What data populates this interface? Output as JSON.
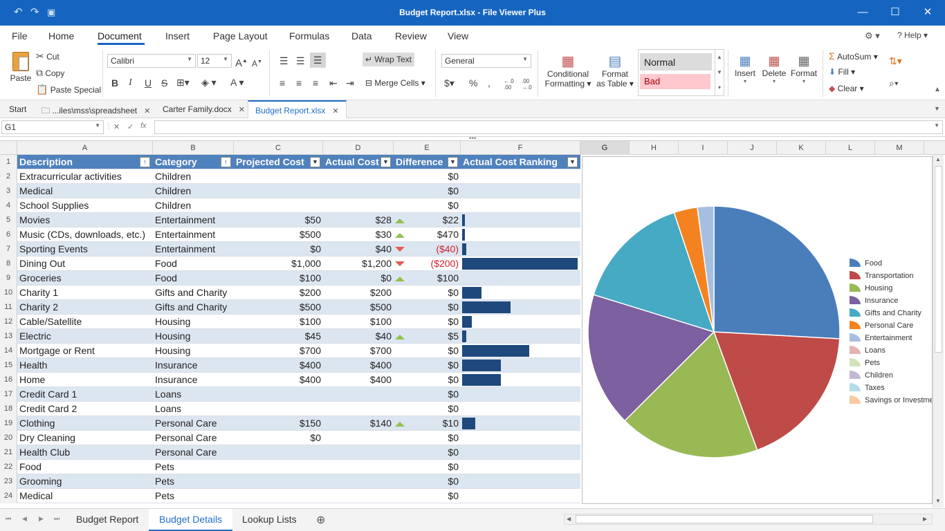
{
  "window": {
    "title": "Budget Report.xlsx - File Viewer Plus"
  },
  "menu": {
    "items": [
      "File",
      "Home",
      "Document",
      "Insert",
      "Page Layout",
      "Formulas",
      "Data",
      "Review",
      "View"
    ],
    "active": "Document",
    "help": "Help"
  },
  "ribbon": {
    "paste": "Paste",
    "cut": "Cut",
    "copy": "Copy",
    "paste_special": "Paste Special",
    "font_name": "Calibri",
    "font_size": "12",
    "wrap_text": "Wrap Text",
    "merge_cells": "Merge Cells",
    "number_format": "General",
    "conditional_formatting": [
      "Conditional",
      "Formatting"
    ],
    "format_as_table": [
      "Format",
      "as Table"
    ],
    "style_normal": "Normal",
    "style_bad": "Bad",
    "insert": "Insert",
    "delete": "Delete",
    "format": "Format",
    "autosum": "AutoSum",
    "fill": "Fill",
    "clear": "Clear"
  },
  "doc_tabs": [
    {
      "label": "Start",
      "closable": false,
      "active": false
    },
    {
      "label": "...iles\\mss\\spreadsheet",
      "closable": true,
      "active": false
    },
    {
      "label": "Carter Family.docx",
      "closable": true,
      "active": false
    },
    {
      "label": "Budget Report.xlsx",
      "closable": true,
      "active": true
    }
  ],
  "formula_bar": {
    "cell_ref": "G1",
    "formula": ""
  },
  "columns": [
    "A",
    "B",
    "C",
    "D",
    "E",
    "F",
    "G",
    "H",
    "I",
    "J",
    "K",
    "L",
    "M"
  ],
  "selected_column": "G",
  "table": {
    "headers": [
      "Description",
      "Category",
      "Projected Cost",
      "Actual Cost",
      "Difference",
      "Actual Cost Ranking"
    ],
    "rows": [
      {
        "n": "1"
      },
      {
        "n": "2",
        "desc": "Extracurricular activities",
        "cat": "Children",
        "proj": "",
        "act": "",
        "diff": "$0",
        "trend": "",
        "rank": 0
      },
      {
        "n": "3",
        "desc": "Medical",
        "cat": "Children",
        "proj": "",
        "act": "",
        "diff": "$0",
        "trend": "",
        "rank": 0
      },
      {
        "n": "4",
        "desc": "School Supplies",
        "cat": "Children",
        "proj": "",
        "act": "",
        "diff": "$0",
        "trend": "",
        "rank": 0
      },
      {
        "n": "5",
        "desc": "Movies",
        "cat": "Entertainment",
        "proj": "$50",
        "act": "$28",
        "diff": "$22",
        "trend": "up",
        "rank": 28
      },
      {
        "n": "6",
        "desc": "Music (CDs, downloads, etc.)",
        "cat": "Entertainment",
        "proj": "$500",
        "act": "$30",
        "diff": "$470",
        "trend": "up",
        "rank": 30
      },
      {
        "n": "7",
        "desc": "Sporting Events",
        "cat": "Entertainment",
        "proj": "$0",
        "act": "$40",
        "diff": "($40)",
        "trend": "down",
        "rank": 40
      },
      {
        "n": "8",
        "desc": "Dining Out",
        "cat": "Food",
        "proj": "$1,000",
        "act": "$1,200",
        "diff": "($200)",
        "trend": "down",
        "rank": 1200
      },
      {
        "n": "9",
        "desc": "Groceries",
        "cat": "Food",
        "proj": "$100",
        "act": "$0",
        "diff": "$100",
        "trend": "up",
        "rank": 0
      },
      {
        "n": "10",
        "desc": "Charity 1",
        "cat": "Gifts and Charity",
        "proj": "$200",
        "act": "$200",
        "diff": "$0",
        "trend": "",
        "rank": 200
      },
      {
        "n": "11",
        "desc": "Charity 2",
        "cat": "Gifts and Charity",
        "proj": "$500",
        "act": "$500",
        "diff": "$0",
        "trend": "",
        "rank": 500
      },
      {
        "n": "12",
        "desc": "Cable/Satellite",
        "cat": "Housing",
        "proj": "$100",
        "act": "$100",
        "diff": "$0",
        "trend": "",
        "rank": 100
      },
      {
        "n": "13",
        "desc": "Electric",
        "cat": "Housing",
        "proj": "$45",
        "act": "$40",
        "diff": "$5",
        "trend": "up",
        "rank": 40
      },
      {
        "n": "14",
        "desc": "Mortgage or Rent",
        "cat": "Housing",
        "proj": "$700",
        "act": "$700",
        "diff": "$0",
        "trend": "",
        "rank": 700
      },
      {
        "n": "15",
        "desc": "Health",
        "cat": "Insurance",
        "proj": "$400",
        "act": "$400",
        "diff": "$0",
        "trend": "",
        "rank": 400
      },
      {
        "n": "16",
        "desc": "Home",
        "cat": "Insurance",
        "proj": "$400",
        "act": "$400",
        "diff": "$0",
        "trend": "",
        "rank": 400
      },
      {
        "n": "17",
        "desc": "Credit Card 1",
        "cat": "Loans",
        "proj": "",
        "act": "",
        "diff": "$0",
        "trend": "",
        "rank": 0
      },
      {
        "n": "18",
        "desc": "Credit Card 2",
        "cat": "Loans",
        "proj": "",
        "act": "",
        "diff": "$0",
        "trend": "",
        "rank": 0
      },
      {
        "n": "19",
        "desc": "Clothing",
        "cat": "Personal Care",
        "proj": "$150",
        "act": "$140",
        "diff": "$10",
        "trend": "up",
        "rank": 140
      },
      {
        "n": "20",
        "desc": "Dry Cleaning",
        "cat": "Personal Care",
        "proj": "$0",
        "act": "",
        "diff": "$0",
        "trend": "",
        "rank": 0
      },
      {
        "n": "21",
        "desc": "Health Club",
        "cat": "Personal Care",
        "proj": "",
        "act": "",
        "diff": "$0",
        "trend": "",
        "rank": 0
      },
      {
        "n": "22",
        "desc": "Food",
        "cat": "Pets",
        "proj": "",
        "act": "",
        "diff": "$0",
        "trend": "",
        "rank": 0
      },
      {
        "n": "23",
        "desc": "Grooming",
        "cat": "Pets",
        "proj": "",
        "act": "",
        "diff": "$0",
        "trend": "",
        "rank": 0
      },
      {
        "n": "24",
        "desc": "Medical",
        "cat": "Pets",
        "proj": "",
        "act": "",
        "diff": "$0",
        "trend": "",
        "rank": 0
      }
    ]
  },
  "chart_data": {
    "type": "pie",
    "title": "",
    "categories": [
      "Food",
      "Transportation",
      "Housing",
      "Insurance",
      "Gifts and Charity",
      "Personal Care",
      "Entertainment",
      "Loans",
      "Pets",
      "Children",
      "Taxes",
      "Savings or Investments"
    ],
    "values": [
      1200,
      860,
      840,
      800,
      700,
      140,
      98,
      0,
      0,
      0,
      0,
      0
    ],
    "colors": [
      "#4a7ebb",
      "#be4b48",
      "#98b954",
      "#7d60a0",
      "#46aac4",
      "#f58220",
      "#a6bfe0",
      "#e6b3b1",
      "#d4e2bb",
      "#c3b8d5",
      "#b3dde8",
      "#f9c9a1"
    ],
    "legend": "right"
  },
  "sheet_tabs": {
    "tabs": [
      "Budget Report",
      "Budget Details",
      "Lookup Lists"
    ],
    "active": "Budget Details"
  }
}
